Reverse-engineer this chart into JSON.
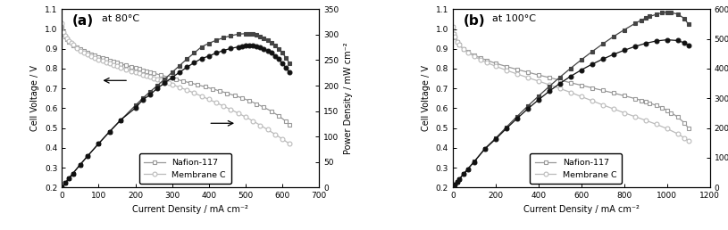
{
  "panel_a": {
    "title_label": "(a)",
    "title_temp": "at 80°C",
    "xlim": [
      0,
      700
    ],
    "ylim_left": [
      0.2,
      1.1
    ],
    "ylim_right": [
      0,
      350
    ],
    "xlabel": "Current Density / mA cm⁻²",
    "ylabel_left": "Cell Voltage / V",
    "ylabel_right": "Power Density / mW cm⁻²",
    "xticks": [
      0,
      100,
      200,
      300,
      400,
      500,
      600,
      700
    ],
    "yticks_left": [
      0.2,
      0.3,
      0.4,
      0.5,
      0.6,
      0.7,
      0.8,
      0.9,
      1.0,
      1.1
    ],
    "yticks_right": [
      0,
      50,
      100,
      150,
      200,
      250,
      300,
      350
    ],
    "nafion117_voltage_x": [
      0,
      5,
      10,
      15,
      20,
      30,
      40,
      50,
      60,
      70,
      80,
      90,
      100,
      110,
      120,
      130,
      140,
      150,
      160,
      175,
      190,
      200,
      210,
      220,
      230,
      240,
      250,
      270,
      290,
      310,
      330,
      350,
      370,
      390,
      410,
      430,
      450,
      470,
      490,
      510,
      530,
      550,
      570,
      590,
      610,
      620
    ],
    "nafion117_voltage_y": [
      1.01,
      0.975,
      0.96,
      0.948,
      0.935,
      0.918,
      0.907,
      0.897,
      0.888,
      0.88,
      0.872,
      0.866,
      0.86,
      0.854,
      0.848,
      0.842,
      0.836,
      0.83,
      0.824,
      0.816,
      0.808,
      0.803,
      0.798,
      0.793,
      0.788,
      0.782,
      0.777,
      0.767,
      0.757,
      0.747,
      0.737,
      0.728,
      0.718,
      0.708,
      0.698,
      0.687,
      0.676,
      0.664,
      0.652,
      0.638,
      0.622,
      0.605,
      0.585,
      0.562,
      0.534,
      0.515
    ],
    "memC_voltage_x": [
      0,
      5,
      10,
      15,
      20,
      25,
      30,
      40,
      50,
      60,
      70,
      80,
      90,
      100,
      110,
      120,
      130,
      140,
      150,
      160,
      175,
      190,
      200,
      210,
      220,
      230,
      240,
      250,
      260,
      270,
      280,
      290,
      300,
      320,
      340,
      360,
      380,
      400,
      420,
      440,
      460,
      480,
      500,
      520,
      540,
      560,
      580,
      600,
      620
    ],
    "memC_voltage_y": [
      1.03,
      0.985,
      0.965,
      0.952,
      0.94,
      0.93,
      0.92,
      0.905,
      0.892,
      0.881,
      0.872,
      0.863,
      0.855,
      0.847,
      0.839,
      0.832,
      0.825,
      0.818,
      0.812,
      0.806,
      0.797,
      0.788,
      0.782,
      0.776,
      0.77,
      0.764,
      0.758,
      0.752,
      0.746,
      0.74,
      0.733,
      0.727,
      0.72,
      0.706,
      0.692,
      0.677,
      0.661,
      0.645,
      0.628,
      0.611,
      0.593,
      0.575,
      0.556,
      0.536,
      0.514,
      0.492,
      0.469,
      0.445,
      0.42
    ],
    "nafion117_power_x": [
      200,
      220,
      240,
      260,
      280,
      300,
      320,
      340,
      360,
      380,
      400,
      420,
      440,
      460,
      480,
      500,
      510,
      520,
      530,
      540,
      550,
      560,
      570,
      580,
      590,
      600,
      610,
      620
    ],
    "nafion117_power_y": [
      161,
      175,
      188,
      200,
      213,
      226,
      239,
      252,
      264,
      276,
      283,
      289,
      294,
      298,
      301,
      302,
      302,
      301,
      299,
      296,
      293,
      289,
      284,
      278,
      272,
      264,
      255,
      243
    ],
    "memC_power_x": [
      200,
      220,
      240,
      260,
      280,
      300,
      320,
      340,
      360,
      380,
      400,
      420,
      440,
      460,
      480,
      490,
      500,
      510,
      520,
      530,
      540,
      550,
      560,
      570,
      580,
      590,
      600,
      610,
      620
    ],
    "memC_power_y": [
      156,
      172,
      182,
      195,
      205,
      216,
      226,
      236,
      245,
      253,
      258,
      264,
      269,
      273,
      276,
      277,
      278,
      278,
      278,
      277,
      275,
      272,
      268,
      264,
      258,
      252,
      244,
      235,
      226
    ],
    "nafion117_power_full_x": [
      0,
      10,
      20,
      30,
      50,
      70,
      100,
      130,
      160,
      200,
      220,
      240,
      260,
      280,
      300,
      320,
      340,
      360,
      380,
      400,
      420,
      440,
      460,
      480,
      500,
      510,
      520,
      530,
      540,
      550,
      560,
      570,
      580,
      590,
      600,
      610,
      620
    ],
    "nafion117_power_full_y": [
      0,
      9.6,
      18.7,
      27.5,
      44.9,
      61.6,
      86.0,
      109.5,
      132.0,
      161,
      175,
      188,
      200,
      213,
      226,
      239,
      252,
      264,
      276,
      283,
      289,
      294,
      298,
      301,
      302,
      302,
      301,
      299,
      296,
      293,
      289,
      284,
      278,
      272,
      264,
      255,
      243
    ],
    "memC_power_full_x": [
      0,
      10,
      20,
      30,
      50,
      70,
      100,
      130,
      160,
      200,
      220,
      240,
      260,
      280,
      300,
      320,
      340,
      360,
      380,
      400,
      420,
      440,
      460,
      480,
      490,
      500,
      510,
      520,
      530,
      540,
      550,
      560,
      570,
      580,
      590,
      600,
      610,
      620
    ],
    "memC_power_full_y": [
      0,
      9.65,
      18.8,
      27.6,
      45.0,
      61.74,
      86.1,
      109.85,
      132.48,
      156,
      172,
      182,
      195,
      205,
      216,
      226,
      236,
      245,
      253,
      258,
      264,
      269,
      273,
      276,
      277,
      278,
      278,
      278,
      277,
      275,
      272,
      268,
      264,
      258,
      252,
      244,
      235,
      226
    ]
  },
  "panel_b": {
    "title_label": "(b)",
    "title_temp": "at 100°C",
    "xlim": [
      0,
      1200
    ],
    "ylim_left": [
      0.2,
      1.1
    ],
    "ylim_right": [
      0,
      600
    ],
    "xlabel": "Current Density / mA cm⁻²",
    "ylabel_left": "Cell Voltage / V",
    "ylabel_right": "Power Density / mW cm⁻²",
    "xticks": [
      0,
      200,
      400,
      600,
      800,
      1000,
      1200
    ],
    "yticks_left": [
      0.2,
      0.3,
      0.4,
      0.5,
      0.6,
      0.7,
      0.8,
      0.9,
      1.0,
      1.1
    ],
    "yticks_right": [
      0,
      100,
      200,
      300,
      400,
      500,
      600
    ],
    "nafion117_voltage_x": [
      0,
      5,
      10,
      20,
      30,
      50,
      70,
      100,
      130,
      160,
      200,
      250,
      300,
      350,
      400,
      450,
      500,
      550,
      600,
      650,
      700,
      750,
      800,
      850,
      880,
      900,
      920,
      950,
      975,
      1000,
      1020,
      1050,
      1080,
      1100
    ],
    "nafion117_voltage_y": [
      1.01,
      0.975,
      0.957,
      0.935,
      0.92,
      0.9,
      0.885,
      0.868,
      0.854,
      0.842,
      0.827,
      0.811,
      0.796,
      0.782,
      0.768,
      0.755,
      0.742,
      0.729,
      0.716,
      0.703,
      0.69,
      0.677,
      0.663,
      0.649,
      0.64,
      0.633,
      0.626,
      0.614,
      0.603,
      0.59,
      0.577,
      0.556,
      0.527,
      0.5
    ],
    "memC_voltage_x": [
      0,
      5,
      10,
      20,
      30,
      50,
      70,
      100,
      130,
      160,
      200,
      250,
      300,
      350,
      400,
      450,
      500,
      550,
      600,
      650,
      700,
      750,
      800,
      850,
      900,
      950,
      1000,
      1050,
      1080,
      1100
    ],
    "memC_voltage_y": [
      1.01,
      0.977,
      0.96,
      0.937,
      0.921,
      0.898,
      0.882,
      0.862,
      0.845,
      0.83,
      0.812,
      0.792,
      0.773,
      0.755,
      0.737,
      0.719,
      0.7,
      0.68,
      0.659,
      0.638,
      0.617,
      0.597,
      0.577,
      0.558,
      0.539,
      0.519,
      0.497,
      0.471,
      0.451,
      0.435
    ],
    "nafion117_power_full_x": [
      0,
      10,
      20,
      30,
      50,
      70,
      100,
      150,
      200,
      250,
      300,
      350,
      400,
      450,
      500,
      550,
      600,
      650,
      700,
      750,
      800,
      850,
      880,
      900,
      920,
      950,
      975,
      1000,
      1020,
      1050,
      1080,
      1100
    ],
    "nafion117_power_full_y": [
      0,
      9.57,
      18.7,
      27.6,
      45.0,
      61.95,
      86.8,
      130.7,
      165.4,
      202.75,
      238.8,
      273.7,
      307.2,
      339.75,
      371.0,
      400.95,
      429.6,
      456.95,
      483.0,
      507.75,
      530.4,
      551.65,
      563.2,
      569.7,
      576.0,
      582.3,
      587.9,
      590.0,
      588.5,
      583.8,
      569.2,
      550.0
    ],
    "memC_power_full_x": [
      0,
      10,
      20,
      30,
      50,
      70,
      100,
      150,
      200,
      250,
      300,
      350,
      400,
      450,
      500,
      550,
      600,
      650,
      700,
      750,
      800,
      850,
      900,
      950,
      1000,
      1050,
      1080,
      1100
    ],
    "memC_power_full_y": [
      0,
      9.6,
      18.74,
      27.63,
      44.9,
      61.74,
      86.2,
      129.45,
      162.4,
      198.0,
      231.9,
      264.25,
      294.8,
      323.55,
      350.0,
      374.0,
      395.4,
      414.7,
      431.9,
      447.75,
      461.6,
      474.3,
      485.1,
      493.05,
      497.0,
      494.55,
      487.08,
      478.5
    ]
  }
}
